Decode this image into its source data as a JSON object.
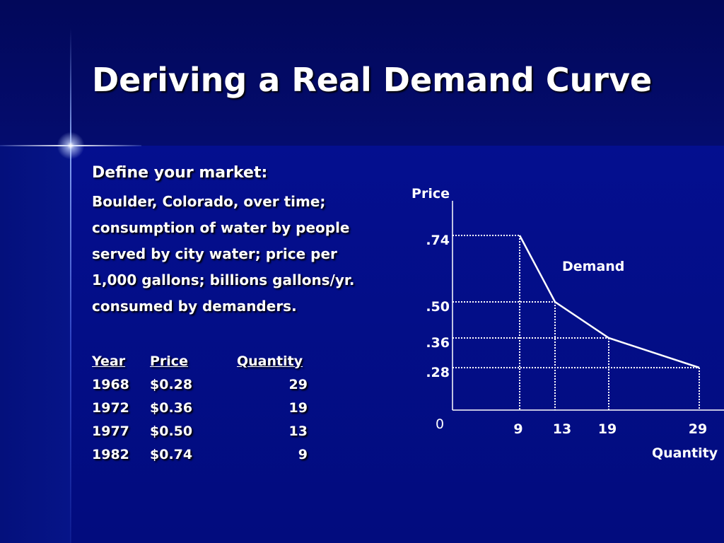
{
  "slide": {
    "title": "Deriving a Real Demand Curve",
    "market_heading": "Define your market:",
    "description_lines": [
      "Boulder, Colorado, over time;",
      "consumption of water by people",
      "served by city water; price per",
      "1,000 gallons; billions gallons/yr.",
      "consumed by demanders."
    ]
  },
  "table": {
    "headers": [
      "Year",
      "Price",
      "Quantity"
    ],
    "rows": [
      [
        "1968",
        "$0.28",
        "29"
      ],
      [
        "1972",
        "$0.36",
        "19"
      ],
      [
        "1977",
        "$0.50",
        "13"
      ],
      [
        "1982",
        "$0.74",
        "9"
      ]
    ]
  },
  "colors": {
    "background": "#000a7a",
    "title_band": "#02085a",
    "text": "#ffffff"
  },
  "chart_data": {
    "type": "line",
    "title": "",
    "xlabel": "Quantity",
    "ylabel": "Price",
    "origin_label": "0",
    "x_tick_labels": [
      "9",
      "13",
      "19",
      "29"
    ],
    "y_tick_labels": [
      ".74",
      ".50",
      ".36",
      ".28"
    ],
    "annotations": [
      "Demand"
    ],
    "grid": "dotted guide lines from each point to both axes",
    "series": [
      {
        "name": "Demand",
        "points": [
          {
            "x": 9,
            "y": 0.74
          },
          {
            "x": 13,
            "y": 0.5
          },
          {
            "x": 19,
            "y": 0.36
          },
          {
            "x": 29,
            "y": 0.28
          }
        ]
      }
    ]
  }
}
